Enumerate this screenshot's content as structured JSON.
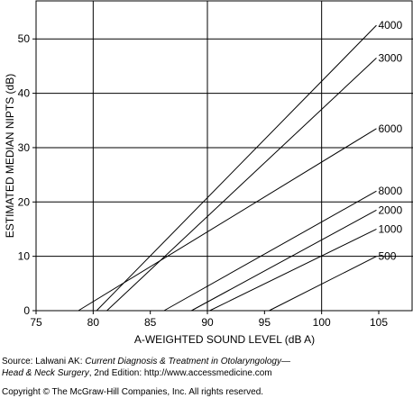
{
  "chart_data": {
    "type": "line",
    "xlabel": "A-WEIGHTED SOUND LEVEL (dB A)",
    "ylabel": "ESTIMATED MEDIAN NIPTS (dB)",
    "xlim": [
      75,
      108
    ],
    "ylim": [
      0,
      57
    ],
    "x_ticks": [
      75,
      80,
      85,
      90,
      95,
      100,
      105
    ],
    "y_ticks": [
      0,
      10,
      20,
      30,
      40,
      50
    ],
    "x_grid": [
      80,
      90,
      100
    ],
    "y_grid": [
      10,
      20,
      30,
      40,
      50
    ],
    "legend": "line-end labels at right",
    "series": [
      {
        "name": "4000",
        "x": [
          80.3,
          104.8
        ],
        "y": [
          0,
          52.5
        ]
      },
      {
        "name": "3000",
        "x": [
          81.2,
          104.8
        ],
        "y": [
          0,
          46.5
        ]
      },
      {
        "name": "6000",
        "x": [
          78.7,
          104.8
        ],
        "y": [
          0,
          33.5
        ]
      },
      {
        "name": "8000",
        "x": [
          86.2,
          104.8
        ],
        "y": [
          0,
          22.0
        ]
      },
      {
        "name": "2000",
        "x": [
          88.6,
          104.8
        ],
        "y": [
          0,
          18.5
        ]
      },
      {
        "name": "1000",
        "x": [
          90.2,
          104.8
        ],
        "y": [
          0,
          15.0
        ]
      },
      {
        "name": "500",
        "x": [
          95.4,
          104.8
        ],
        "y": [
          0,
          10.0
        ]
      }
    ]
  },
  "caption": {
    "source_prefix": "Source: Lalwani AK: ",
    "source_title_1": "Current Diagnosis & Treatment in Otolaryngology—",
    "source_title_2": "Head & Neck Surgery",
    "source_suffix": ", 2nd Edition: http://www.accessmedicine.com",
    "copyright": "Copyright © The McGraw-Hill Companies, Inc. All rights reserved."
  }
}
